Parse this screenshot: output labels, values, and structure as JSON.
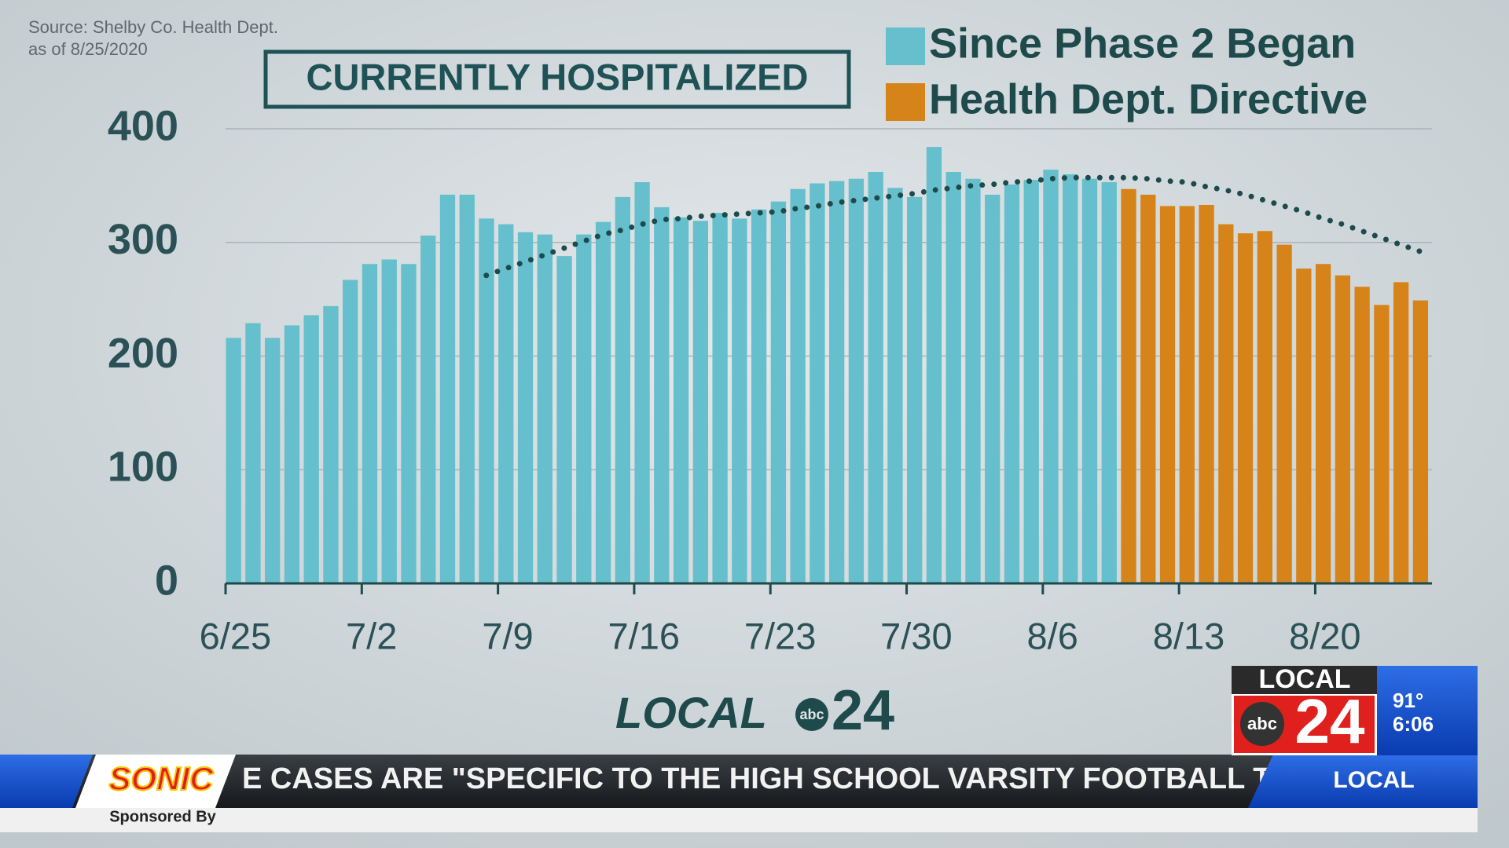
{
  "chart_data": {
    "type": "bar",
    "source": "Source:  Shelby Co. Health Dept.",
    "as_of": "as of 8/25/2020",
    "title": "CURRENTLY HOSPITALIZED",
    "categories": [
      "6/25",
      null,
      null,
      null,
      null,
      null,
      null,
      "7/2",
      null,
      null,
      null,
      null,
      null,
      null,
      "7/9",
      null,
      null,
      null,
      null,
      null,
      null,
      "7/16",
      null,
      null,
      null,
      null,
      null,
      null,
      "7/23",
      null,
      null,
      null,
      null,
      null,
      null,
      "7/30",
      null,
      null,
      null,
      null,
      null,
      null,
      "8/6",
      null,
      null,
      null,
      null,
      null,
      null,
      "8/13",
      null,
      null,
      null,
      null,
      null,
      null,
      "8/20",
      null,
      null,
      null,
      null,
      null
    ],
    "series": [
      {
        "name": "Since Phase 2 Began",
        "color": "#66bfcc",
        "values": [
          216,
          229,
          216,
          227,
          236,
          244,
          267,
          281,
          285,
          281,
          306,
          342,
          342,
          321,
          316,
          309,
          307,
          288,
          307,
          318,
          340,
          353,
          331,
          322,
          319,
          326,
          321,
          329,
          336,
          347,
          352,
          354,
          356,
          362,
          348,
          340,
          384,
          362,
          356,
          342,
          351,
          355,
          364,
          360,
          356,
          353,
          null,
          null,
          null,
          null,
          null,
          null,
          null,
          null,
          null,
          null,
          null,
          null,
          null,
          null,
          null,
          null
        ]
      },
      {
        "name": "Health Dept. Directive",
        "color": "#d6841a",
        "values": [
          null,
          null,
          null,
          null,
          null,
          null,
          null,
          null,
          null,
          null,
          null,
          null,
          null,
          null,
          null,
          null,
          null,
          null,
          null,
          null,
          null,
          null,
          null,
          null,
          null,
          null,
          null,
          null,
          null,
          null,
          null,
          null,
          null,
          null,
          null,
          null,
          null,
          null,
          null,
          null,
          null,
          null,
          null,
          null,
          null,
          null,
          347,
          342,
          332,
          332,
          333,
          316,
          308,
          310,
          298,
          277,
          281,
          271,
          261,
          245,
          265,
          249
        ]
      },
      {
        "type": "line",
        "color": "#1d4b4d",
        "values": [
          null,
          null,
          null,
          null,
          null,
          null,
          null,
          null,
          null,
          null,
          null,
          null,
          null,
          271,
          277,
          283,
          289,
          295,
          301,
          307,
          311,
          316,
          320,
          321,
          323,
          324,
          325,
          326,
          327,
          330,
          332,
          335,
          337,
          339,
          341,
          343,
          346,
          348,
          350,
          351,
          353,
          354,
          356,
          357,
          357,
          357,
          357,
          356,
          354,
          353,
          349,
          346,
          342,
          337,
          332,
          327,
          321,
          316,
          310,
          304,
          298,
          292
        ]
      }
    ],
    "ylim": [
      0,
      400
    ],
    "yticks": [
      0,
      100,
      200,
      300,
      400
    ],
    "grid": true
  },
  "broadcast": {
    "watermark": "LOCAL",
    "watermark_network": "abc",
    "watermark_number": "24",
    "bug_top": "LOCAL",
    "bug_network": "abc",
    "bug_number": "24",
    "temperature": "91°",
    "time": "6:06",
    "ticker": "E CASES ARE \"SPECIFIC TO THE HIGH SCHOOL VARSITY FOOTBALL T",
    "ticker_section": "LOCAL",
    "sponsor": "SONIC",
    "sponsor_note": "Sponsored By"
  }
}
